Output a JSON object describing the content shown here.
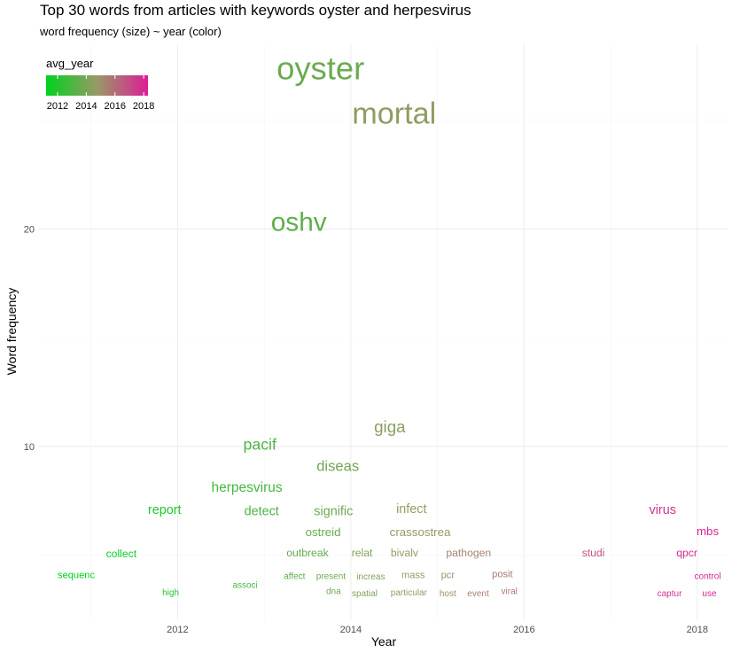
{
  "chart_data": {
    "type": "scatter",
    "title": "Top 30 words from  articles with keywords oyster and herpesvirus",
    "subtitle": "word frequency (size) ~ year (color)",
    "xlabel": "Year",
    "ylabel": "Word frequency",
    "xlim": [
      2010.4,
      2018.36
    ],
    "ylim": [
      2.0,
      28.5
    ],
    "x_ticks": [
      2012,
      2014,
      2016,
      2018
    ],
    "y_ticks": [
      10,
      20
    ],
    "grid": true,
    "legend": {
      "title": "avg_year",
      "position": "top-left",
      "ticks": [
        2012,
        2014,
        2016,
        2018
      ],
      "color_low": "#00d21e",
      "color_mid": "#999966",
      "color_high": "#dc1e96",
      "range": [
        2011.2,
        2018.3
      ]
    },
    "words": [
      {
        "label": "oyster",
        "x": 2013.65,
        "y": 27.4,
        "freq": 27
      },
      {
        "label": "mortal",
        "x": 2014.5,
        "y": 25.3,
        "freq": 25
      },
      {
        "label": "oshv",
        "x": 2013.4,
        "y": 20.3,
        "freq": 21
      },
      {
        "label": "giga",
        "x": 2014.45,
        "y": 10.9,
        "freq": 11
      },
      {
        "label": "pacif",
        "x": 2012.95,
        "y": 10.1,
        "freq": 10
      },
      {
        "label": "diseas",
        "x": 2013.85,
        "y": 9.1,
        "freq": 9
      },
      {
        "label": "herpesvirus",
        "x": 2012.8,
        "y": 8.1,
        "freq": 8
      },
      {
        "label": "report",
        "x": 2011.85,
        "y": 7.05,
        "freq": 7
      },
      {
        "label": "detect",
        "x": 2012.97,
        "y": 7.0,
        "freq": 7
      },
      {
        "label": "signific",
        "x": 2013.8,
        "y": 7.0,
        "freq": 7
      },
      {
        "label": "infect",
        "x": 2014.7,
        "y": 7.1,
        "freq": 7
      },
      {
        "label": "virus",
        "x": 2017.6,
        "y": 7.05,
        "freq": 7
      },
      {
        "label": "ostreid",
        "x": 2013.68,
        "y": 6.05,
        "freq": 6
      },
      {
        "label": "crassostrea",
        "x": 2014.8,
        "y": 6.05,
        "freq": 6
      },
      {
        "label": "mbs",
        "x": 2018.12,
        "y": 6.1,
        "freq": 6
      },
      {
        "label": "collect",
        "x": 2011.35,
        "y": 5.05,
        "freq": 5
      },
      {
        "label": "outbreak",
        "x": 2013.5,
        "y": 5.1,
        "freq": 5
      },
      {
        "label": "relat",
        "x": 2014.13,
        "y": 5.1,
        "freq": 5
      },
      {
        "label": "bivalv",
        "x": 2014.62,
        "y": 5.1,
        "freq": 5
      },
      {
        "label": "pathogen",
        "x": 2015.36,
        "y": 5.1,
        "freq": 5
      },
      {
        "label": "studi",
        "x": 2016.8,
        "y": 5.1,
        "freq": 5
      },
      {
        "label": "qpcr",
        "x": 2017.88,
        "y": 5.1,
        "freq": 5
      },
      {
        "label": "sequenc",
        "x": 2010.83,
        "y": 4.05,
        "freq": 4
      },
      {
        "label": "mass",
        "x": 2014.72,
        "y": 4.05,
        "freq": 4
      },
      {
        "label": "pcr",
        "x": 2015.12,
        "y": 4.05,
        "freq": 4
      },
      {
        "label": "posit",
        "x": 2015.75,
        "y": 4.1,
        "freq": 4
      },
      {
        "label": "affect",
        "x": 2013.35,
        "y": 4.0,
        "freq": 3
      },
      {
        "label": "present",
        "x": 2013.77,
        "y": 4.0,
        "freq": 3
      },
      {
        "label": "increas",
        "x": 2014.23,
        "y": 3.98,
        "freq": 3
      },
      {
        "label": "control",
        "x": 2018.12,
        "y": 4.0,
        "freq": 3
      },
      {
        "label": "associ",
        "x": 2012.78,
        "y": 3.6,
        "freq": 3
      },
      {
        "label": "high",
        "x": 2011.92,
        "y": 3.25,
        "freq": 3
      },
      {
        "label": "dna",
        "x": 2013.8,
        "y": 3.3,
        "freq": 3
      },
      {
        "label": "spatial",
        "x": 2014.16,
        "y": 3.2,
        "freq": 3
      },
      {
        "label": "particular",
        "x": 2014.67,
        "y": 3.25,
        "freq": 3
      },
      {
        "label": "host",
        "x": 2015.12,
        "y": 3.2,
        "freq": 3
      },
      {
        "label": "event",
        "x": 2015.47,
        "y": 3.2,
        "freq": 3
      },
      {
        "label": "viral",
        "x": 2015.83,
        "y": 3.3,
        "freq": 3
      },
      {
        "label": "captur",
        "x": 2017.68,
        "y": 3.2,
        "freq": 3
      },
      {
        "label": "use",
        "x": 2018.14,
        "y": 3.2,
        "freq": 3
      }
    ]
  }
}
